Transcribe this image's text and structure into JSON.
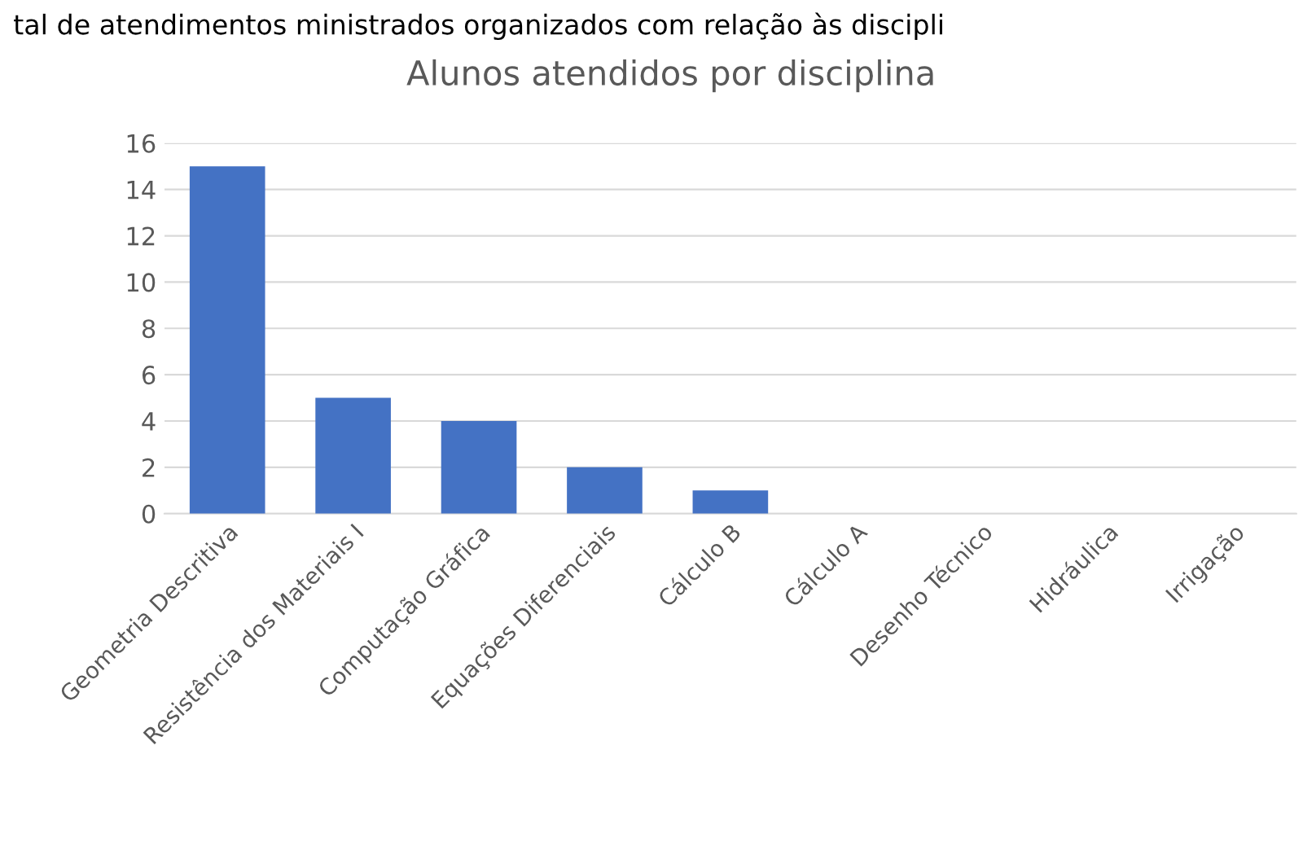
{
  "chart_data": {
    "type": "bar",
    "title": "Alunos atendidos por disciplina",
    "annotations": [
      "tal de atendimentos ministrados organizados com relação às discipli"
    ],
    "categories": [
      "Geometria Descritiva",
      "Resistência dos Materiais I",
      "Computação Gráfica",
      "Equações Diferenciais",
      "Cálculo B",
      "Cálculo A",
      "Desenho Técnico",
      "Hidráulica",
      "Irrigação"
    ],
    "values": [
      15,
      5,
      4,
      2,
      1,
      0,
      0,
      0,
      0
    ],
    "color": "#4472c4",
    "ylim": [
      0,
      16
    ],
    "yticks": [
      0,
      2,
      4,
      6,
      8,
      10,
      12,
      14,
      16
    ],
    "grid": "y"
  }
}
